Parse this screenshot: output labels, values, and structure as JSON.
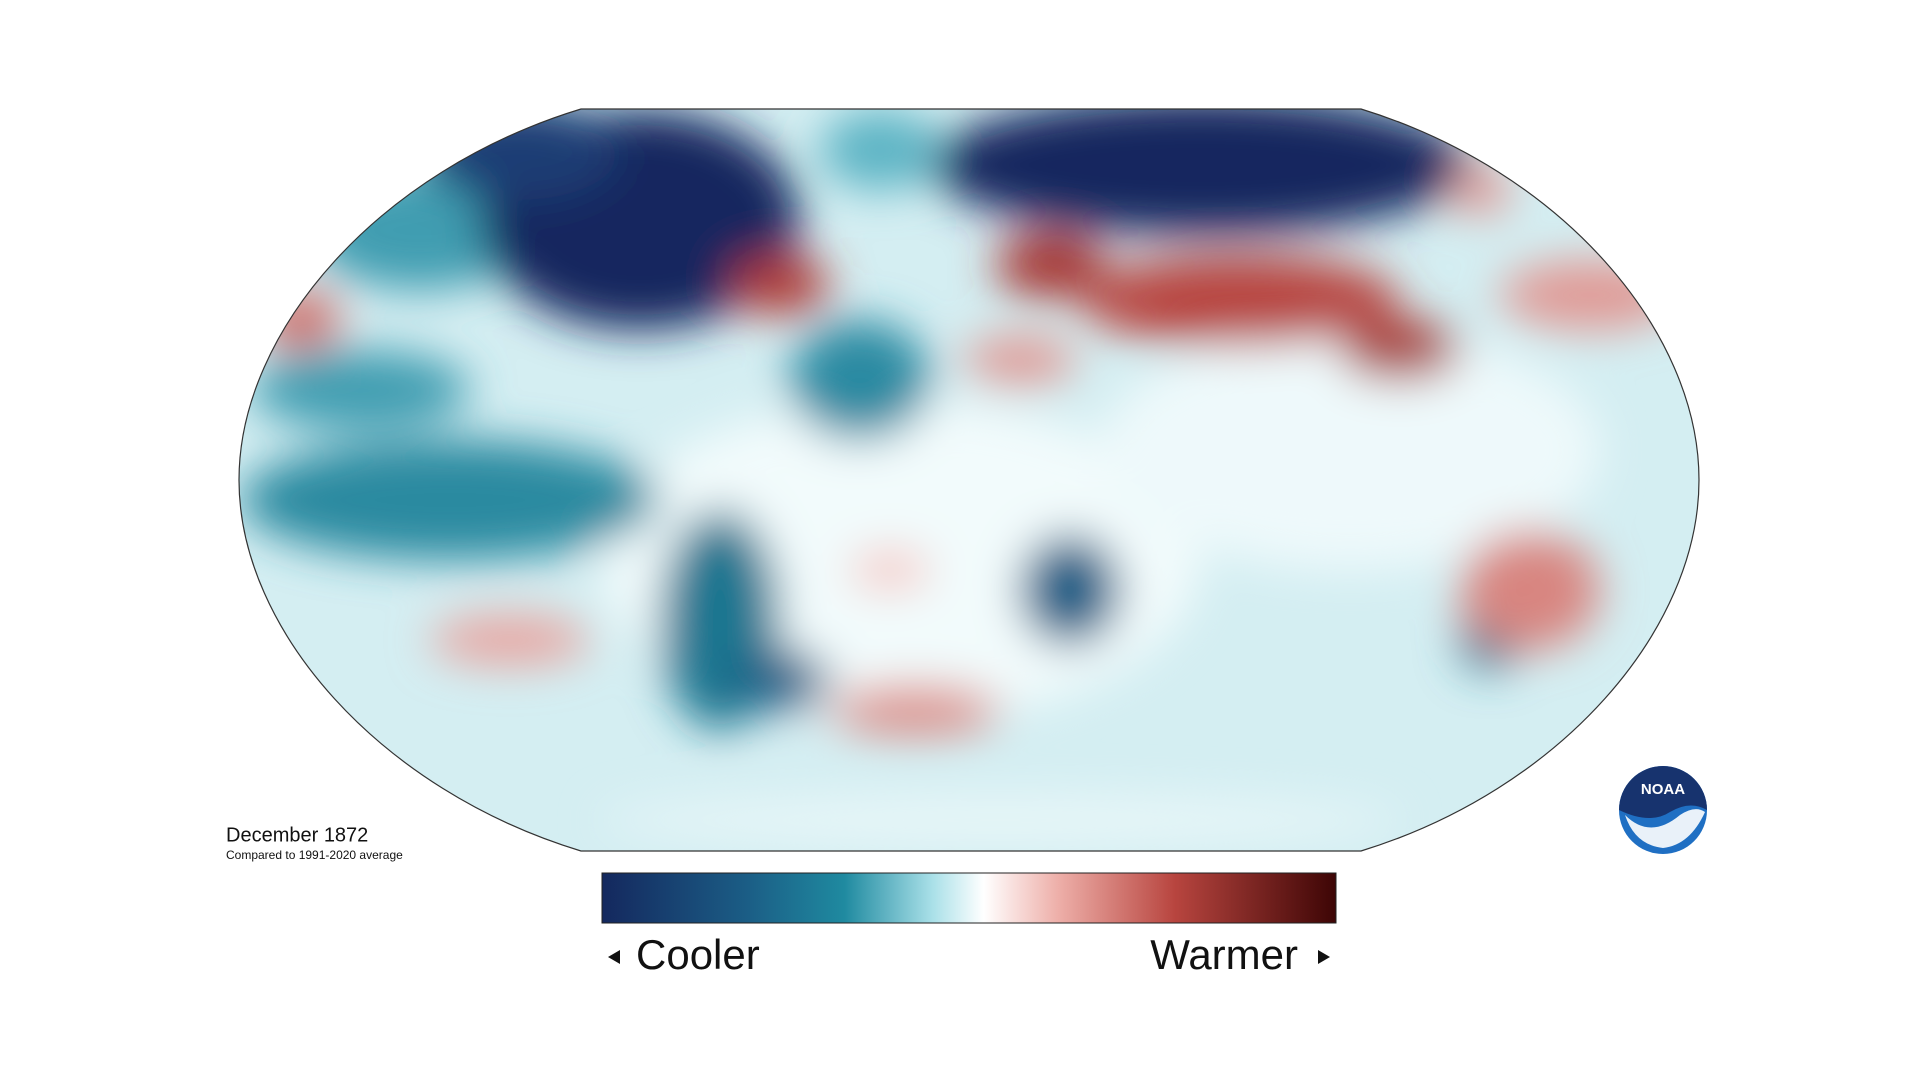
{
  "map": {
    "title": "December 1872",
    "subtitle": "Compared to 1991-2020 average"
  },
  "legend": {
    "low_label": "Cooler",
    "high_label": "Warmer"
  },
  "logo": {
    "text": "NOAA"
  }
}
